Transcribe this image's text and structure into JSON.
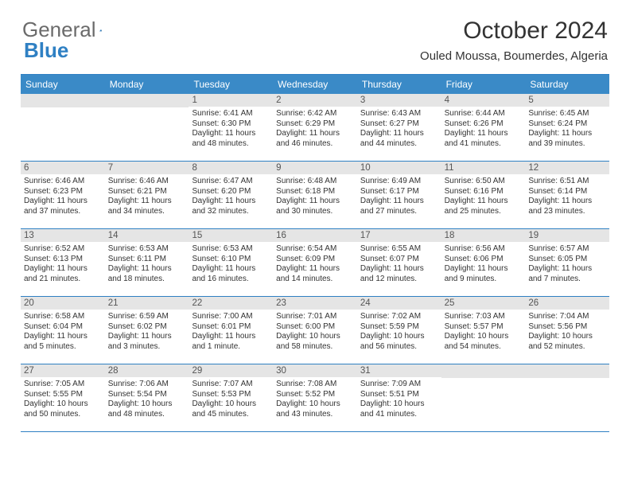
{
  "brand": {
    "part1": "General",
    "part2": "Blue"
  },
  "title": "October 2024",
  "location": "Ouled Moussa, Boumerdes, Algeria",
  "colors": {
    "header_bg": "#3a8ac7",
    "border": "#2f80c3",
    "daynum_bg": "#e5e5e5",
    "text": "#333333",
    "logo_gray": "#6b6b6b"
  },
  "weekdays": [
    "Sunday",
    "Monday",
    "Tuesday",
    "Wednesday",
    "Thursday",
    "Friday",
    "Saturday"
  ],
  "weeks": [
    [
      {
        "num": "",
        "sunrise": "",
        "sunset": "",
        "daylight": ""
      },
      {
        "num": "",
        "sunrise": "",
        "sunset": "",
        "daylight": ""
      },
      {
        "num": "1",
        "sunrise": "Sunrise: 6:41 AM",
        "sunset": "Sunset: 6:30 PM",
        "daylight": "Daylight: 11 hours and 48 minutes."
      },
      {
        "num": "2",
        "sunrise": "Sunrise: 6:42 AM",
        "sunset": "Sunset: 6:29 PM",
        "daylight": "Daylight: 11 hours and 46 minutes."
      },
      {
        "num": "3",
        "sunrise": "Sunrise: 6:43 AM",
        "sunset": "Sunset: 6:27 PM",
        "daylight": "Daylight: 11 hours and 44 minutes."
      },
      {
        "num": "4",
        "sunrise": "Sunrise: 6:44 AM",
        "sunset": "Sunset: 6:26 PM",
        "daylight": "Daylight: 11 hours and 41 minutes."
      },
      {
        "num": "5",
        "sunrise": "Sunrise: 6:45 AM",
        "sunset": "Sunset: 6:24 PM",
        "daylight": "Daylight: 11 hours and 39 minutes."
      }
    ],
    [
      {
        "num": "6",
        "sunrise": "Sunrise: 6:46 AM",
        "sunset": "Sunset: 6:23 PM",
        "daylight": "Daylight: 11 hours and 37 minutes."
      },
      {
        "num": "7",
        "sunrise": "Sunrise: 6:46 AM",
        "sunset": "Sunset: 6:21 PM",
        "daylight": "Daylight: 11 hours and 34 minutes."
      },
      {
        "num": "8",
        "sunrise": "Sunrise: 6:47 AM",
        "sunset": "Sunset: 6:20 PM",
        "daylight": "Daylight: 11 hours and 32 minutes."
      },
      {
        "num": "9",
        "sunrise": "Sunrise: 6:48 AM",
        "sunset": "Sunset: 6:18 PM",
        "daylight": "Daylight: 11 hours and 30 minutes."
      },
      {
        "num": "10",
        "sunrise": "Sunrise: 6:49 AM",
        "sunset": "Sunset: 6:17 PM",
        "daylight": "Daylight: 11 hours and 27 minutes."
      },
      {
        "num": "11",
        "sunrise": "Sunrise: 6:50 AM",
        "sunset": "Sunset: 6:16 PM",
        "daylight": "Daylight: 11 hours and 25 minutes."
      },
      {
        "num": "12",
        "sunrise": "Sunrise: 6:51 AM",
        "sunset": "Sunset: 6:14 PM",
        "daylight": "Daylight: 11 hours and 23 minutes."
      }
    ],
    [
      {
        "num": "13",
        "sunrise": "Sunrise: 6:52 AM",
        "sunset": "Sunset: 6:13 PM",
        "daylight": "Daylight: 11 hours and 21 minutes."
      },
      {
        "num": "14",
        "sunrise": "Sunrise: 6:53 AM",
        "sunset": "Sunset: 6:11 PM",
        "daylight": "Daylight: 11 hours and 18 minutes."
      },
      {
        "num": "15",
        "sunrise": "Sunrise: 6:53 AM",
        "sunset": "Sunset: 6:10 PM",
        "daylight": "Daylight: 11 hours and 16 minutes."
      },
      {
        "num": "16",
        "sunrise": "Sunrise: 6:54 AM",
        "sunset": "Sunset: 6:09 PM",
        "daylight": "Daylight: 11 hours and 14 minutes."
      },
      {
        "num": "17",
        "sunrise": "Sunrise: 6:55 AM",
        "sunset": "Sunset: 6:07 PM",
        "daylight": "Daylight: 11 hours and 12 minutes."
      },
      {
        "num": "18",
        "sunrise": "Sunrise: 6:56 AM",
        "sunset": "Sunset: 6:06 PM",
        "daylight": "Daylight: 11 hours and 9 minutes."
      },
      {
        "num": "19",
        "sunrise": "Sunrise: 6:57 AM",
        "sunset": "Sunset: 6:05 PM",
        "daylight": "Daylight: 11 hours and 7 minutes."
      }
    ],
    [
      {
        "num": "20",
        "sunrise": "Sunrise: 6:58 AM",
        "sunset": "Sunset: 6:04 PM",
        "daylight": "Daylight: 11 hours and 5 minutes."
      },
      {
        "num": "21",
        "sunrise": "Sunrise: 6:59 AM",
        "sunset": "Sunset: 6:02 PM",
        "daylight": "Daylight: 11 hours and 3 minutes."
      },
      {
        "num": "22",
        "sunrise": "Sunrise: 7:00 AM",
        "sunset": "Sunset: 6:01 PM",
        "daylight": "Daylight: 11 hours and 1 minute."
      },
      {
        "num": "23",
        "sunrise": "Sunrise: 7:01 AM",
        "sunset": "Sunset: 6:00 PM",
        "daylight": "Daylight: 10 hours and 58 minutes."
      },
      {
        "num": "24",
        "sunrise": "Sunrise: 7:02 AM",
        "sunset": "Sunset: 5:59 PM",
        "daylight": "Daylight: 10 hours and 56 minutes."
      },
      {
        "num": "25",
        "sunrise": "Sunrise: 7:03 AM",
        "sunset": "Sunset: 5:57 PM",
        "daylight": "Daylight: 10 hours and 54 minutes."
      },
      {
        "num": "26",
        "sunrise": "Sunrise: 7:04 AM",
        "sunset": "Sunset: 5:56 PM",
        "daylight": "Daylight: 10 hours and 52 minutes."
      }
    ],
    [
      {
        "num": "27",
        "sunrise": "Sunrise: 7:05 AM",
        "sunset": "Sunset: 5:55 PM",
        "daylight": "Daylight: 10 hours and 50 minutes."
      },
      {
        "num": "28",
        "sunrise": "Sunrise: 7:06 AM",
        "sunset": "Sunset: 5:54 PM",
        "daylight": "Daylight: 10 hours and 48 minutes."
      },
      {
        "num": "29",
        "sunrise": "Sunrise: 7:07 AM",
        "sunset": "Sunset: 5:53 PM",
        "daylight": "Daylight: 10 hours and 45 minutes."
      },
      {
        "num": "30",
        "sunrise": "Sunrise: 7:08 AM",
        "sunset": "Sunset: 5:52 PM",
        "daylight": "Daylight: 10 hours and 43 minutes."
      },
      {
        "num": "31",
        "sunrise": "Sunrise: 7:09 AM",
        "sunset": "Sunset: 5:51 PM",
        "daylight": "Daylight: 10 hours and 41 minutes."
      },
      {
        "num": "",
        "sunrise": "",
        "sunset": "",
        "daylight": ""
      },
      {
        "num": "",
        "sunrise": "",
        "sunset": "",
        "daylight": ""
      }
    ]
  ]
}
